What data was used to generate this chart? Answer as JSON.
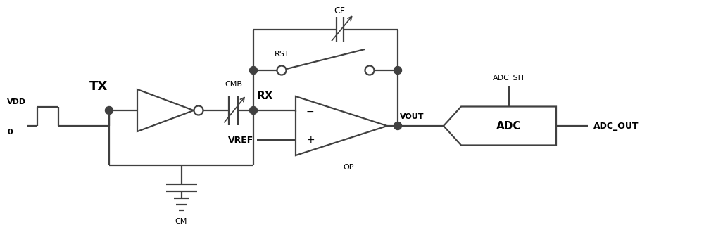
{
  "bg_color": "#ffffff",
  "line_color": "#404040",
  "text_color": "#000000",
  "fig_width": 10.0,
  "fig_height": 3.47,
  "dpi": 100,
  "lw": 1.6,
  "xlim": [
    0,
    10
  ],
  "ylim": [
    0,
    3.47
  ]
}
